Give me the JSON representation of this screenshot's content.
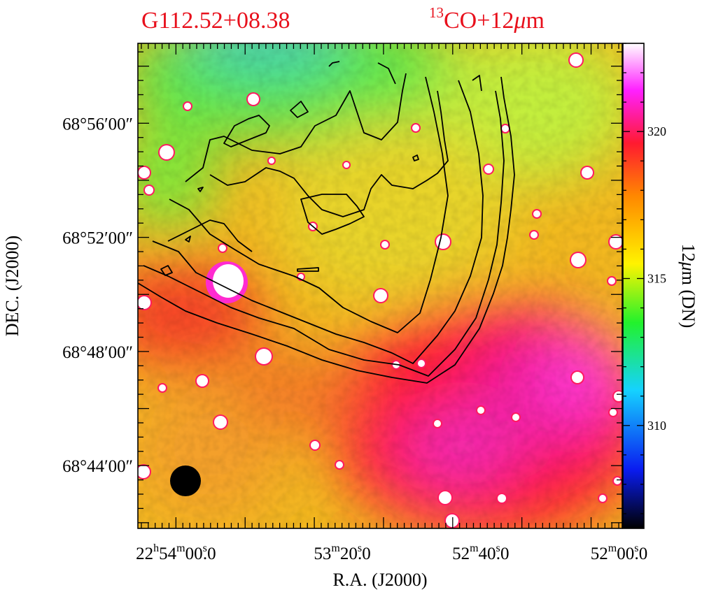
{
  "chart_data": {
    "type": "heatmap",
    "title_left": "G112.52+08.38",
    "title_right": {
      "sup": "13",
      "text": "CO+12",
      "mu": "μ",
      "tail": "m"
    },
    "xlabel": "R.A.  (J2000)",
    "ylabel": "DEC.  (J2000)",
    "colorbar_label": {
      "pre": "12",
      "mu": "μ",
      "tail": "m (DN)"
    },
    "x_ticks": [
      {
        "ra_s": 53640,
        "h": "22",
        "m": "54",
        "s": "00",
        "frac": ".0"
      },
      {
        "ra_s": 53600,
        "h": "",
        "m": "53",
        "s": "20",
        "frac": ".0"
      },
      {
        "ra_s": 53560,
        "h": "",
        "m": "52",
        "s": "40",
        "frac": ".0"
      },
      {
        "ra_s": 53520,
        "h": "",
        "m": "52",
        "s": "00",
        "frac": ".0"
      }
    ],
    "x_range_ra_s": [
      53651,
      53511
    ],
    "y_ticks": [
      {
        "dec_arcmin": 4136,
        "label": "68°56′00″"
      },
      {
        "dec_arcmin": 4132,
        "label": "68°52′00″"
      },
      {
        "dec_arcmin": 4128,
        "label": "68°48′00″"
      },
      {
        "dec_arcmin": 4124,
        "label": "68°44′00″"
      }
    ],
    "y_range_dec_arcmin": [
      4121.8,
      4138.8
    ],
    "colorbar": {
      "range": [
        306.5,
        323
      ],
      "ticks": [
        310,
        315,
        320
      ],
      "stops": [
        {
          "v": 306.5,
          "c": "#000000"
        },
        {
          "v": 308.5,
          "c": "#0a1cf0"
        },
        {
          "v": 311.2,
          "c": "#15d2ff"
        },
        {
          "v": 313.5,
          "c": "#22f22c"
        },
        {
          "v": 315.5,
          "c": "#fff300"
        },
        {
          "v": 317.8,
          "c": "#ff8800"
        },
        {
          "v": 319.6,
          "c": "#ff1a30"
        },
        {
          "v": 321.4,
          "c": "#ff20ff"
        },
        {
          "v": 323,
          "c": "#ffffff"
        }
      ]
    },
    "beam": "filled-circle",
    "colors": {
      "title": "#e8101c",
      "contour": "#000000"
    }
  }
}
